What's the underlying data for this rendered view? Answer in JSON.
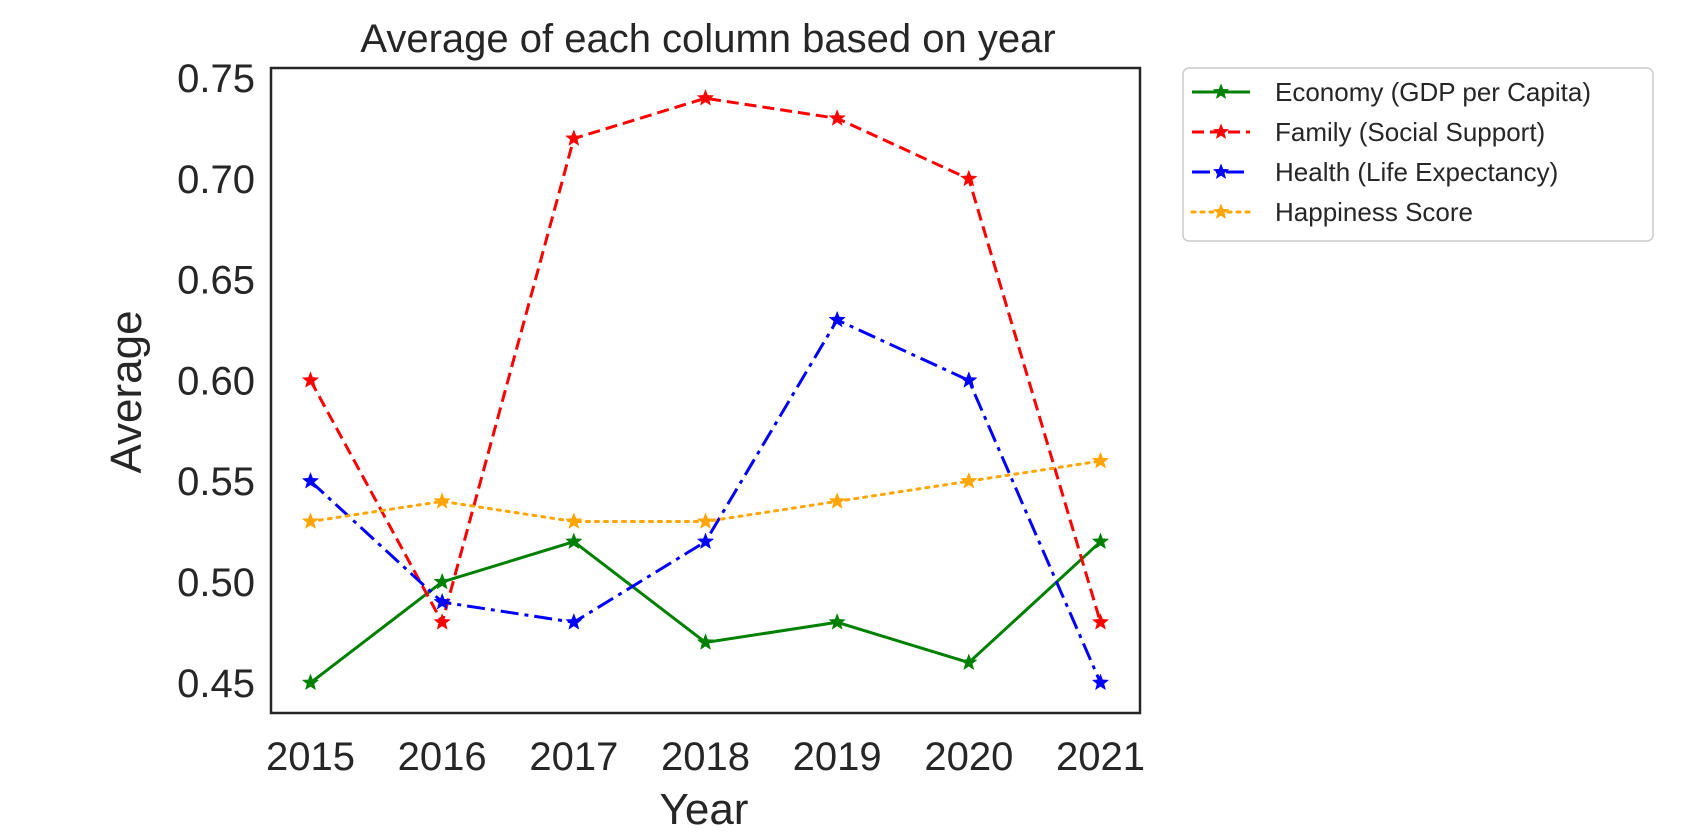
{
  "chart_data": {
    "type": "line",
    "title": "Average of each column based on year",
    "xlabel": "Year",
    "ylabel": "Average",
    "x": [
      2015,
      2016,
      2017,
      2018,
      2019,
      2020,
      2021
    ],
    "xticks": [
      "2015",
      "2016",
      "2017",
      "2018",
      "2019",
      "2020",
      "2021"
    ],
    "yticks": [
      "0.45",
      "0.50",
      "0.55",
      "0.60",
      "0.65",
      "0.70",
      "0.75"
    ],
    "ytick_values": [
      0.45,
      0.5,
      0.55,
      0.6,
      0.65,
      0.7,
      0.75
    ],
    "ylim": [
      0.435,
      0.755
    ],
    "xlim": [
      2014.7,
      2021.3
    ],
    "grid": false,
    "legend_position": "outside-top-right",
    "series": [
      {
        "name": " Economy (GDP per Capita)",
        "values": [
          0.45,
          0.5,
          0.52,
          0.47,
          0.48,
          0.46,
          0.52
        ],
        "color": "#008000",
        "linestyle": "solid",
        "marker": "star"
      },
      {
        "name": "Family (Social Support)",
        "values": [
          0.6,
          0.48,
          0.72,
          0.74,
          0.73,
          0.7,
          0.48
        ],
        "color": "#ff0000",
        "linestyle": "dashed",
        "marker": "star"
      },
      {
        "name": "Health (Life Expectancy)",
        "values": [
          0.55,
          0.49,
          0.48,
          0.52,
          0.63,
          0.6,
          0.45
        ],
        "color": "#0000ff",
        "linestyle": "dashdot",
        "marker": "star"
      },
      {
        "name": "Happiness Score",
        "values": [
          0.53,
          0.54,
          0.53,
          0.53,
          0.54,
          0.55,
          0.56
        ],
        "color": "#ffa500",
        "linestyle": "dotted",
        "marker": "star"
      }
    ]
  }
}
